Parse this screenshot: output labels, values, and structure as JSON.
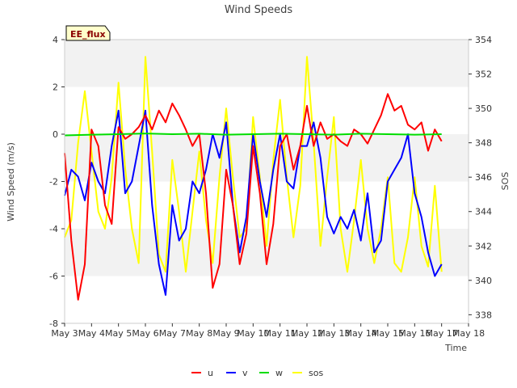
{
  "chart_data": {
    "type": "line",
    "title": "Wind Speeds",
    "badge": "EE_flux",
    "xlabel": "Time",
    "ylabel": "Wind Speed (m/s)",
    "y2label": "SOS",
    "xlim": [
      3,
      18
    ],
    "ylim": [
      -8,
      4
    ],
    "y2lim": [
      337.5,
      354
    ],
    "x_ticks": [
      3,
      4,
      5,
      6,
      7,
      8,
      9,
      10,
      11,
      12,
      13,
      14,
      15,
      16,
      17,
      18
    ],
    "x_tick_labels": [
      "May 3",
      "May 4",
      "May 5",
      "May 6",
      "May 7",
      "May 8",
      "May 9",
      "May 10",
      "May 11",
      "May 12",
      "May 13",
      "May 14",
      "May 15",
      "May 16",
      "May 17",
      "May 18"
    ],
    "y_ticks": [
      -8,
      -6,
      -4,
      -2,
      0,
      2,
      4
    ],
    "y_tick_labels": [
      "-8",
      "-6",
      "-4",
      "-2",
      "0",
      "2",
      "4"
    ],
    "y2_ticks": [
      338,
      340,
      342,
      344,
      346,
      348,
      350,
      352,
      354
    ],
    "y2_tick_labels": [
      "338",
      "340",
      "342",
      "344",
      "346",
      "348",
      "350",
      "352",
      "354"
    ],
    "grid_bands": true,
    "legend_position": "bottom-center",
    "series": [
      {
        "name": "u",
        "color": "#ff0000",
        "axis": "left",
        "x": [
          3.0,
          3.25,
          3.5,
          3.75,
          4.0,
          4.25,
          4.5,
          4.75,
          5.0,
          5.25,
          5.5,
          5.75,
          6.0,
          6.25,
          6.5,
          6.75,
          7.0,
          7.25,
          7.5,
          7.75,
          8.0,
          8.25,
          8.5,
          8.75,
          9.0,
          9.25,
          9.5,
          9.75,
          10.0,
          10.25,
          10.5,
          10.75,
          11.0,
          11.25,
          11.5,
          11.75,
          12.0,
          12.25,
          12.5,
          12.75,
          13.0,
          13.25,
          13.5,
          13.75,
          14.0,
          14.25,
          14.5,
          14.75,
          15.0,
          15.25,
          15.5,
          15.75,
          16.0,
          16.25,
          16.5,
          16.75,
          17.0
        ],
        "values": [
          -0.8,
          -4.5,
          -7.0,
          -5.5,
          0.2,
          -0.5,
          -3.0,
          -3.8,
          0.3,
          -0.2,
          0.0,
          0.3,
          0.8,
          0.2,
          1.0,
          0.5,
          1.3,
          0.8,
          0.2,
          -0.5,
          0.0,
          -2.5,
          -6.5,
          -5.5,
          -1.5,
          -3.0,
          -5.5,
          -4.2,
          -0.5,
          -2.5,
          -5.5,
          -3.8,
          -0.5,
          0.0,
          -1.5,
          -0.5,
          1.2,
          -0.5,
          0.5,
          -0.2,
          0.0,
          -0.3,
          -0.5,
          0.2,
          0.0,
          -0.4,
          0.2,
          0.8,
          1.7,
          1.0,
          1.2,
          0.4,
          0.2,
          0.5,
          -0.7,
          0.2,
          -0.3
        ]
      },
      {
        "name": "v",
        "color": "#0000ff",
        "axis": "left",
        "x": [
          3.0,
          3.25,
          3.5,
          3.75,
          4.0,
          4.25,
          4.5,
          4.75,
          5.0,
          5.25,
          5.5,
          5.75,
          6.0,
          6.25,
          6.5,
          6.75,
          7.0,
          7.25,
          7.5,
          7.75,
          8.0,
          8.25,
          8.5,
          8.75,
          9.0,
          9.25,
          9.5,
          9.75,
          10.0,
          10.25,
          10.5,
          10.75,
          11.0,
          11.25,
          11.5,
          11.75,
          12.0,
          12.25,
          12.5,
          12.75,
          13.0,
          13.25,
          13.5,
          13.75,
          14.0,
          14.25,
          14.5,
          14.75,
          15.0,
          15.25,
          15.5,
          15.75,
          16.0,
          16.25,
          16.5,
          16.75,
          17.0
        ],
        "values": [
          -2.6,
          -1.5,
          -1.8,
          -2.8,
          -1.2,
          -2.0,
          -2.5,
          -0.5,
          1.0,
          -2.5,
          -2.0,
          -0.5,
          1.0,
          -3.0,
          -5.5,
          -6.8,
          -3.0,
          -4.5,
          -4.0,
          -2.0,
          -2.5,
          -1.5,
          0.0,
          -1.0,
          0.5,
          -3.0,
          -5.0,
          -3.5,
          0.0,
          -2.0,
          -3.5,
          -1.5,
          0.0,
          -2.0,
          -2.3,
          -0.5,
          -0.5,
          0.5,
          -1.0,
          -3.5,
          -4.2,
          -3.5,
          -4.0,
          -3.2,
          -4.5,
          -2.5,
          -5.0,
          -4.5,
          -2.0,
          -1.5,
          -1.0,
          0.0,
          -2.5,
          -3.5,
          -5.0,
          -6.0,
          -5.5
        ]
      },
      {
        "name": "w",
        "color": "#00dd00",
        "axis": "left",
        "x": [
          3.0,
          4.0,
          5.0,
          6.0,
          7.0,
          8.0,
          9.0,
          10.0,
          11.0,
          12.0,
          13.0,
          14.0,
          15.0,
          16.0,
          17.0
        ],
        "values": [
          -0.05,
          -0.02,
          0.0,
          0.03,
          0.0,
          0.02,
          -0.02,
          0.0,
          0.02,
          0.0,
          -0.02,
          0.02,
          0.0,
          -0.02,
          0.0
        ]
      },
      {
        "name": "sos",
        "color": "#ffff00",
        "axis": "right",
        "x": [
          3.0,
          3.25,
          3.5,
          3.75,
          4.0,
          4.25,
          4.5,
          4.75,
          5.0,
          5.25,
          5.5,
          5.75,
          6.0,
          6.25,
          6.5,
          6.75,
          7.0,
          7.25,
          7.5,
          7.75,
          8.0,
          8.25,
          8.5,
          8.75,
          9.0,
          9.25,
          9.5,
          9.75,
          10.0,
          10.25,
          10.5,
          10.75,
          11.0,
          11.25,
          11.5,
          11.75,
          12.0,
          12.25,
          12.5,
          12.75,
          13.0,
          13.25,
          13.5,
          13.75,
          14.0,
          14.25,
          14.5,
          14.75,
          15.0,
          15.25,
          15.5,
          15.75,
          16.0,
          16.25,
          16.5,
          16.75,
          17.0
        ],
        "values": [
          342.5,
          343.5,
          348.0,
          351.0,
          347.5,
          344.0,
          343.0,
          346.0,
          351.5,
          346.5,
          343.0,
          341.0,
          353.0,
          347.5,
          341.5,
          340.5,
          347.0,
          344.0,
          340.5,
          344.0,
          347.5,
          343.5,
          341.0,
          346.0,
          350.0,
          346.0,
          342.5,
          343.0,
          349.5,
          346.0,
          342.0,
          347.0,
          350.5,
          346.0,
          342.5,
          345.5,
          353.0,
          348.0,
          342.0,
          346.0,
          349.5,
          343.0,
          340.5,
          343.5,
          347.0,
          343.0,
          341.0,
          343.0,
          346.0,
          341.0,
          340.5,
          342.5,
          346.0,
          342.0,
          340.8,
          345.5,
          340.5
        ]
      }
    ]
  }
}
